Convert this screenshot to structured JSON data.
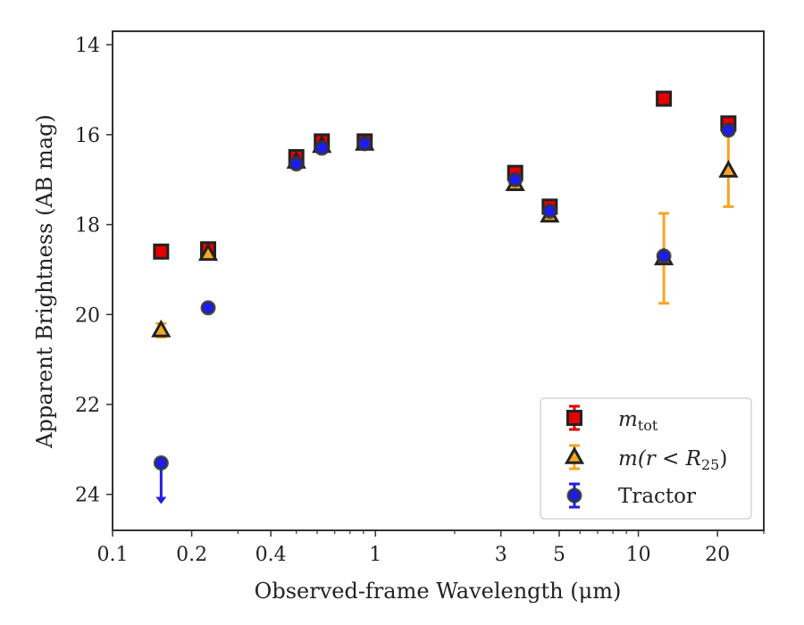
{
  "chart_data": {
    "type": "scatter",
    "xlabel": "Observed-frame Wavelength (μm)",
    "ylabel": "Apparent Brightness (AB mag)",
    "xscale": "log",
    "xlim": [
      0.1,
      30
    ],
    "ylim": [
      24.8,
      13.7
    ],
    "y_inverted": true,
    "grid": false,
    "legend_position": "lower-right",
    "xticks": [
      {
        "value": 0.1,
        "label": "0.1"
      },
      {
        "value": 0.2,
        "label": "0.2"
      },
      {
        "value": 0.4,
        "label": "0.4"
      },
      {
        "value": 1,
        "label": "1"
      },
      {
        "value": 3,
        "label": "3"
      },
      {
        "value": 5,
        "label": "5"
      },
      {
        "value": 10,
        "label": "10"
      },
      {
        "value": 20,
        "label": "20"
      }
    ],
    "xminor": [
      0.3,
      0.5,
      0.6,
      0.7,
      0.8,
      0.9,
      2,
      4,
      6,
      7,
      8,
      9,
      30
    ],
    "yticks": [
      {
        "value": 14,
        "label": "14"
      },
      {
        "value": 16,
        "label": "16"
      },
      {
        "value": 18,
        "label": "18"
      },
      {
        "value": 20,
        "label": "20"
      },
      {
        "value": 22,
        "label": "22"
      },
      {
        "value": 24,
        "label": "24"
      }
    ],
    "series": [
      {
        "name": "m_tot",
        "marker": "square",
        "color": "#e60000",
        "errcolor": "#dd0000",
        "points": [
          {
            "x": 0.153,
            "y": 18.6,
            "err": 0.05
          },
          {
            "x": 0.231,
            "y": 18.55,
            "err": 0.05
          },
          {
            "x": 0.5,
            "y": 16.5,
            "err": 0.05
          },
          {
            "x": 0.625,
            "y": 16.15,
            "err": 0.05
          },
          {
            "x": 0.91,
            "y": 16.15,
            "err": 0.05
          },
          {
            "x": 3.4,
            "y": 16.85,
            "err": 0.05
          },
          {
            "x": 4.6,
            "y": 17.6,
            "err": 0.05
          },
          {
            "x": 12.5,
            "y": 15.2,
            "err": 0.05
          },
          {
            "x": 22.0,
            "y": 15.75,
            "err": 0.05
          }
        ]
      },
      {
        "name": "m(r < R25)",
        "marker": "triangle",
        "color": "#f5a623",
        "errcolor": "#f5a623",
        "points": [
          {
            "x": 0.153,
            "y": 20.35,
            "err": 0.15
          },
          {
            "x": 0.231,
            "y": 18.65,
            "err": 0.05
          },
          {
            "x": 0.5,
            "y": 16.6,
            "err": 0.05
          },
          {
            "x": 0.625,
            "y": 16.25,
            "err": 0.05
          },
          {
            "x": 0.91,
            "y": 16.2,
            "err": 0.05
          },
          {
            "x": 3.4,
            "y": 17.1,
            "err": 0.05
          },
          {
            "x": 4.6,
            "y": 17.8,
            "err": 0.05
          },
          {
            "x": 12.5,
            "y": 18.75,
            "err": 1.0
          },
          {
            "x": 22.0,
            "y": 16.8,
            "err": 0.8
          }
        ]
      },
      {
        "name": "Tractor",
        "marker": "circle",
        "color": "#1c1cee",
        "errcolor": "#2020e0",
        "points": [
          {
            "x": 0.153,
            "y": 23.3,
            "err": 0,
            "upper_limit": true
          },
          {
            "x": 0.231,
            "y": 19.85,
            "err": 0.05
          },
          {
            "x": 0.5,
            "y": 16.65,
            "err": 0.05
          },
          {
            "x": 0.625,
            "y": 16.3,
            "err": 0.05
          },
          {
            "x": 0.91,
            "y": 16.2,
            "err": 0.05
          },
          {
            "x": 3.4,
            "y": 17.0,
            "err": 0.05
          },
          {
            "x": 4.6,
            "y": 17.7,
            "err": 0.05
          },
          {
            "x": 12.5,
            "y": 18.7,
            "err": 0.05
          },
          {
            "x": 22.0,
            "y": 15.9,
            "err": 0.05
          }
        ]
      }
    ]
  },
  "legend": {
    "items": [
      {
        "math": true,
        "base": "m",
        "sub": "tot",
        "suffix": ""
      },
      {
        "math": true,
        "base": "m",
        "sub": "25",
        "prefix": "(r < R",
        "suffix": ")"
      },
      {
        "math": false,
        "text": "Tractor"
      }
    ]
  }
}
